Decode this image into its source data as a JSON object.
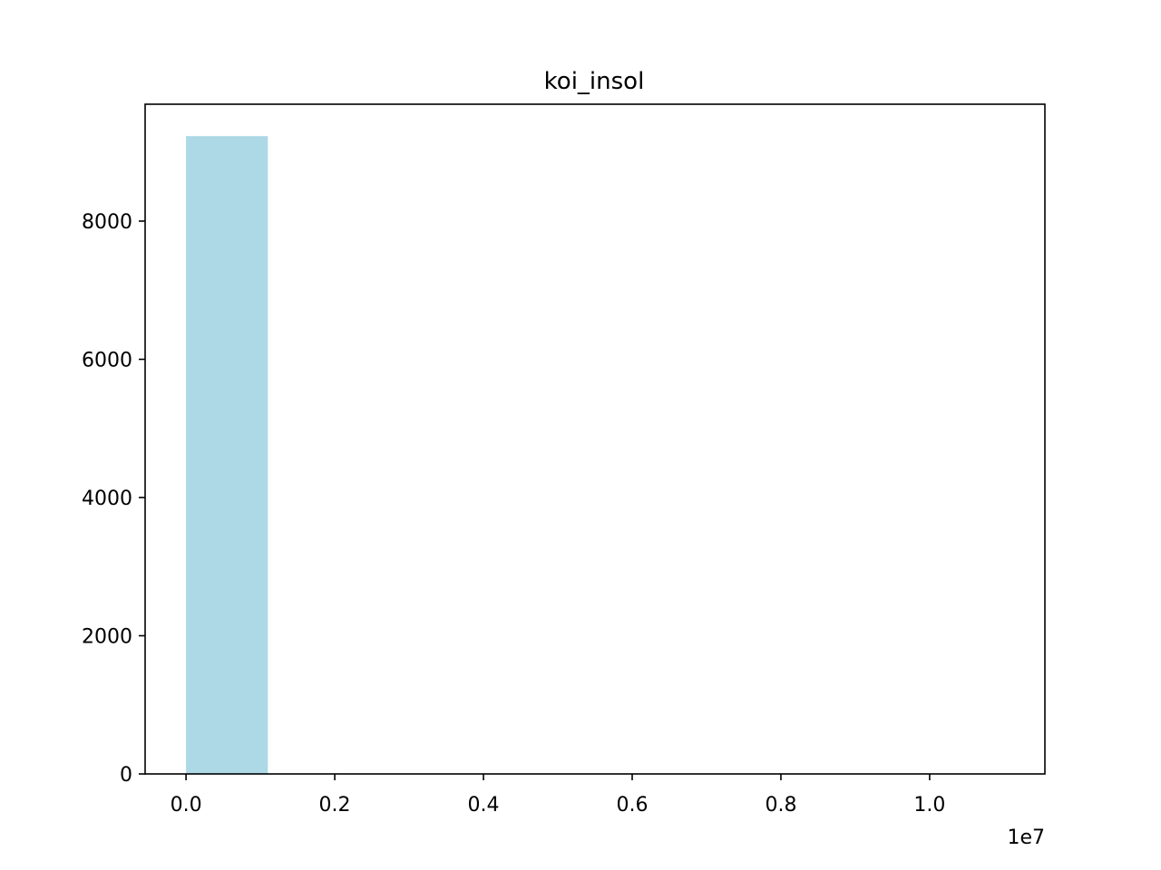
{
  "chart_data": {
    "type": "bar",
    "title": "koi_insol",
    "xlabel": "",
    "ylabel": "",
    "x_offset_label": "1e7",
    "bar_color": "#add8e6",
    "bins": [
      {
        "x0": 0.0,
        "x1": 0.11,
        "count": 9230
      },
      {
        "x0": 0.11,
        "x1": 0.22,
        "count": 0
      },
      {
        "x0": 0.22,
        "x1": 0.33,
        "count": 0
      },
      {
        "x0": 0.33,
        "x1": 0.44,
        "count": 0
      },
      {
        "x0": 0.44,
        "x1": 0.55,
        "count": 0
      },
      {
        "x0": 0.55,
        "x1": 0.66,
        "count": 0
      },
      {
        "x0": 0.66,
        "x1": 0.77,
        "count": 0
      },
      {
        "x0": 0.77,
        "x1": 0.88,
        "count": 0
      },
      {
        "x0": 0.88,
        "x1": 0.99,
        "count": 0
      },
      {
        "x0": 0.99,
        "x1": 1.1,
        "count": 0
      }
    ],
    "xlim": [
      -0.055,
      1.155
    ],
    "ylim": [
      0,
      9691.5
    ],
    "x_ticks": [
      {
        "value": 0.0,
        "label": "0.0"
      },
      {
        "value": 0.2,
        "label": "0.2"
      },
      {
        "value": 0.4,
        "label": "0.4"
      },
      {
        "value": 0.6,
        "label": "0.6"
      },
      {
        "value": 0.8,
        "label": "0.8"
      },
      {
        "value": 1.0,
        "label": "1.0"
      }
    ],
    "y_ticks": [
      {
        "value": 0,
        "label": "0"
      },
      {
        "value": 2000,
        "label": "2000"
      },
      {
        "value": 4000,
        "label": "4000"
      },
      {
        "value": 6000,
        "label": "6000"
      },
      {
        "value": 8000,
        "label": "8000"
      }
    ],
    "grid": false,
    "legend": "none"
  }
}
